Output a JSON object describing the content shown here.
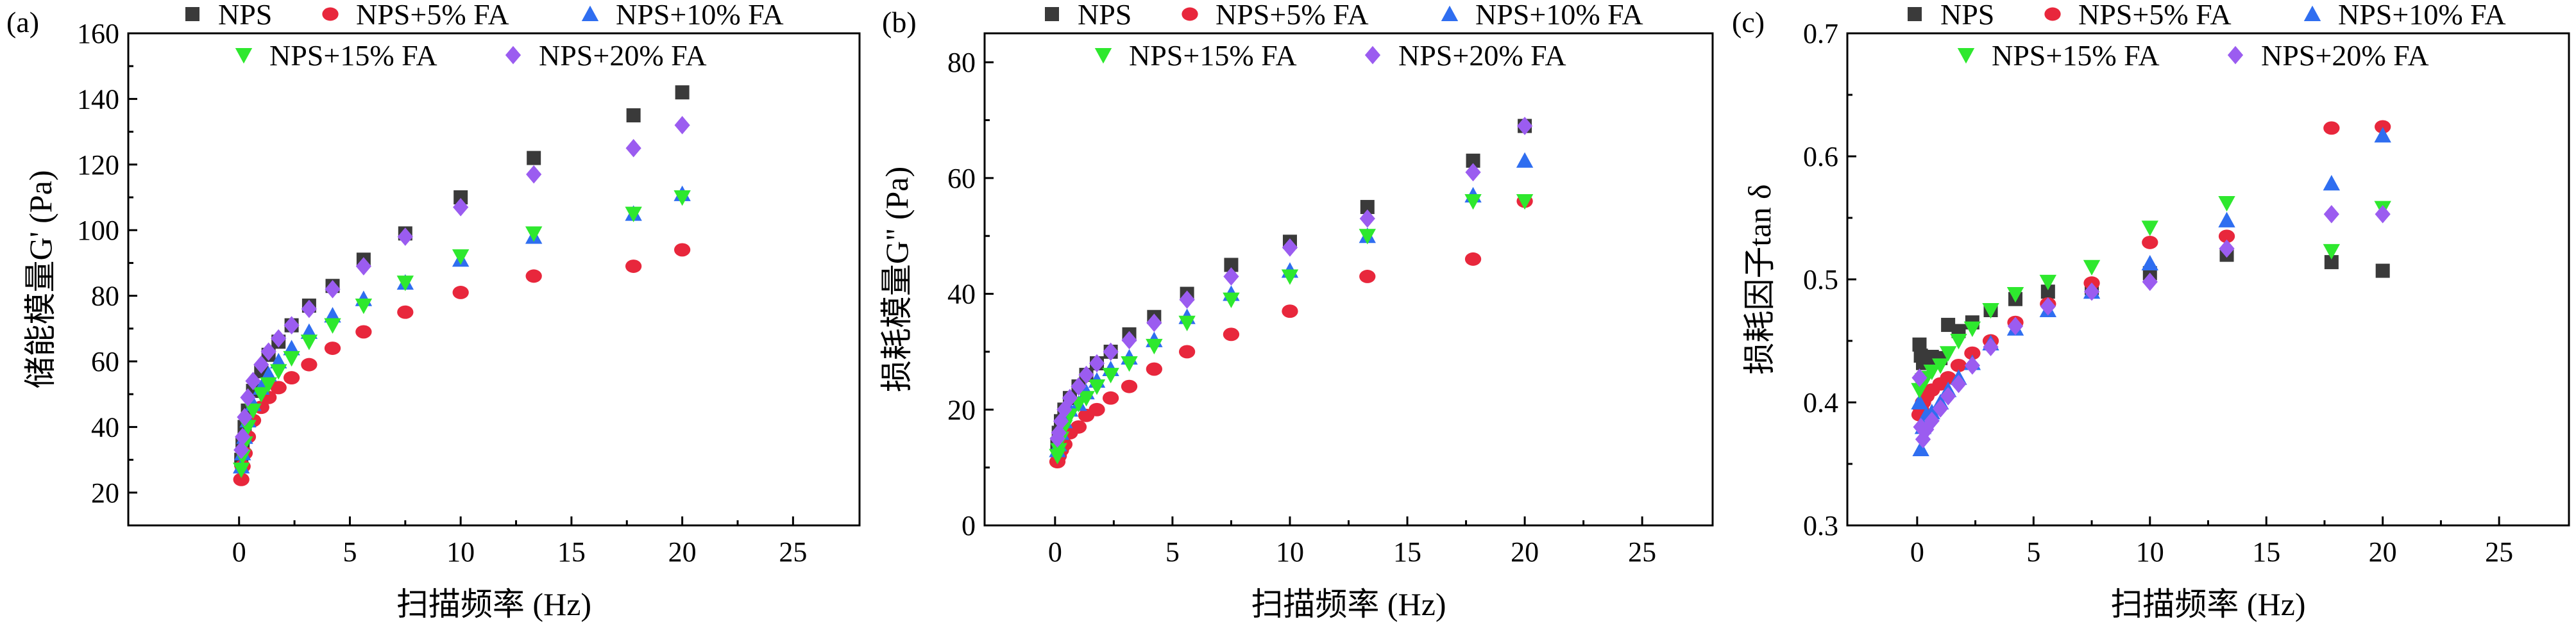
{
  "figure_note": "Three rheology scatter plots versus frequency for NPS with fly ash additions",
  "chart_data": [
    {
      "type": "scatter",
      "panel_label": "(a)",
      "xlabel": "扫描频率 (Hz)",
      "ylabel": "储能模量G' (Pa)",
      "xlim": [
        -5,
        28
      ],
      "ylim": [
        10,
        160
      ],
      "xticks": [
        0,
        5,
        10,
        15,
        20,
        25
      ],
      "yticks": [
        20,
        40,
        60,
        80,
        100,
        120,
        140,
        160
      ],
      "x": [
        0.1,
        0.158,
        0.251,
        0.398,
        0.631,
        1.0,
        1.33,
        1.78,
        2.37,
        3.16,
        4.22,
        5.62,
        7.5,
        10.0,
        13.3,
        17.8,
        20.0
      ],
      "series": [
        {
          "name": "NPS",
          "marker": "square",
          "color": "#3a3a3a",
          "values": [
            30,
            35,
            40,
            45,
            51,
            57,
            62,
            66,
            71,
            77,
            83,
            91,
            99,
            110,
            122,
            135,
            142
          ]
        },
        {
          "name": "NPS+5% FA",
          "marker": "circle",
          "color": "#e8273c",
          "values": [
            24,
            28,
            32,
            37,
            42,
            46,
            49,
            52,
            55,
            59,
            64,
            69,
            75,
            81,
            86,
            89,
            94
          ]
        },
        {
          "name": "NPS+10% FA",
          "marker": "triangle-up",
          "color": "#2f6ef0",
          "values": [
            28,
            32,
            37,
            42,
            47,
            52,
            56,
            60,
            64,
            69,
            74,
            79,
            84,
            91,
            98,
            105,
            111
          ]
        },
        {
          "name": "NPS+15% FA",
          "marker": "triangle-down",
          "color": "#2ee82e",
          "values": [
            27,
            31,
            35,
            40,
            45,
            50,
            53,
            57,
            61,
            66,
            71,
            77,
            84,
            92,
            99,
            105,
            110
          ]
        },
        {
          "name": "NPS+20% FA",
          "marker": "diamond",
          "color": "#9b5cf0",
          "values": [
            33,
            37,
            43,
            49,
            54,
            59,
            63,
            67,
            71,
            76,
            82,
            89,
            98,
            107,
            117,
            125,
            132
          ]
        }
      ]
    },
    {
      "type": "scatter",
      "panel_label": "(b)",
      "xlabel": "扫描频率 (Hz)",
      "ylabel": "损耗模量G\" (Pa)",
      "xlim": [
        -3,
        28
      ],
      "ylim": [
        0,
        85
      ],
      "xticks": [
        0,
        5,
        10,
        15,
        20,
        25
      ],
      "yticks": [
        0,
        20,
        40,
        60,
        80
      ],
      "x": [
        0.1,
        0.158,
        0.251,
        0.398,
        0.631,
        1.0,
        1.33,
        1.78,
        2.37,
        3.16,
        4.22,
        5.62,
        7.5,
        10.0,
        13.3,
        17.8,
        20.0
      ],
      "series": [
        {
          "name": "NPS",
          "marker": "square",
          "color": "#3a3a3a",
          "values": [
            14,
            16,
            18,
            20,
            22,
            24,
            26,
            28,
            30,
            33,
            36,
            40,
            45,
            49,
            55,
            63,
            69
          ]
        },
        {
          "name": "NPS+5% FA",
          "marker": "circle",
          "color": "#e8273c",
          "values": [
            11,
            12,
            13,
            14,
            16,
            17,
            19,
            20,
            22,
            24,
            27,
            30,
            33,
            37,
            43,
            46,
            56
          ]
        },
        {
          "name": "NPS+10% FA",
          "marker": "triangle-up",
          "color": "#2f6ef0",
          "values": [
            13,
            14,
            16,
            18,
            20,
            21,
            23,
            25,
            27,
            29,
            32,
            36,
            40,
            44,
            50,
            57,
            63
          ]
        },
        {
          "name": "NPS+15% FA",
          "marker": "triangle-down",
          "color": "#2ee82e",
          "values": [
            12,
            13,
            15,
            17,
            19,
            21,
            22,
            24,
            26,
            28,
            31,
            35,
            39,
            43,
            50,
            56,
            56
          ]
        },
        {
          "name": "NPS+20% FA",
          "marker": "diamond",
          "color": "#9b5cf0",
          "values": [
            15,
            16,
            18,
            20,
            22,
            24,
            26,
            28,
            30,
            32,
            35,
            39,
            43,
            48,
            53,
            61,
            69
          ]
        }
      ]
    },
    {
      "type": "scatter",
      "panel_label": "(c)",
      "xlabel": "扫描频率 (Hz)",
      "ylabel": "损耗因子tan δ",
      "xlim": [
        -3,
        28
      ],
      "ylim": [
        0.3,
        0.7
      ],
      "xticks": [
        0,
        5,
        10,
        15,
        20,
        25
      ],
      "yticks": [
        0.3,
        0.4,
        0.5,
        0.6,
        0.7
      ],
      "ytick_labels": [
        "0.3",
        "0.4",
        "0.5",
        "0.6",
        "0.7"
      ],
      "x": [
        0.1,
        0.158,
        0.251,
        0.398,
        0.631,
        1.0,
        1.33,
        1.78,
        2.37,
        3.16,
        4.22,
        5.62,
        7.5,
        10.0,
        13.3,
        17.8,
        20.0
      ],
      "series": [
        {
          "name": "NPS",
          "marker": "square",
          "color": "#3a3a3a",
          "values": [
            0.447,
            0.438,
            0.432,
            0.436,
            0.437,
            0.436,
            0.463,
            0.458,
            0.465,
            0.475,
            0.484,
            0.49,
            0.493,
            0.505,
            0.52,
            0.514,
            0.507
          ]
        },
        {
          "name": "NPS+5% FA",
          "marker": "circle",
          "color": "#e8273c",
          "values": [
            0.39,
            0.395,
            0.4,
            0.405,
            0.41,
            0.415,
            0.42,
            0.43,
            0.44,
            0.45,
            0.465,
            0.48,
            0.497,
            0.53,
            0.535,
            0.623,
            0.624
          ]
        },
        {
          "name": "NPS+10% FA",
          "marker": "triangle-up",
          "color": "#2f6ef0",
          "values": [
            0.4,
            0.362,
            0.38,
            0.39,
            0.392,
            0.4,
            0.41,
            0.42,
            0.432,
            0.448,
            0.46,
            0.475,
            0.49,
            0.513,
            0.548,
            0.578,
            0.617
          ]
        },
        {
          "name": "NPS+15% FA",
          "marker": "triangle-down",
          "color": "#2ee82e",
          "values": [
            0.41,
            0.415,
            0.418,
            0.42,
            0.425,
            0.43,
            0.44,
            0.45,
            0.46,
            0.475,
            0.488,
            0.498,
            0.51,
            0.542,
            0.562,
            0.523,
            0.558
          ]
        },
        {
          "name": "NPS+20% FA",
          "marker": "diamond",
          "color": "#9b5cf0",
          "values": [
            0.42,
            0.38,
            0.37,
            0.378,
            0.385,
            0.395,
            0.405,
            0.415,
            0.43,
            0.445,
            0.462,
            0.478,
            0.49,
            0.498,
            0.525,
            0.553,
            0.553
          ]
        }
      ]
    }
  ]
}
